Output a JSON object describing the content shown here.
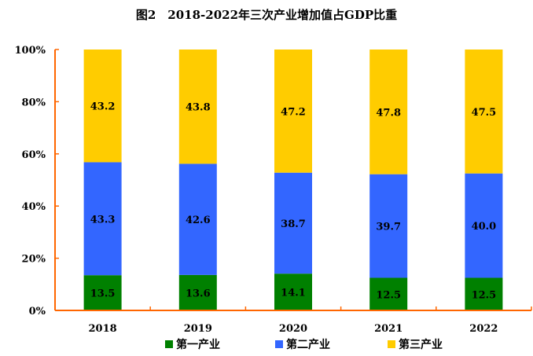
{
  "chart_data": {
    "type": "bar",
    "stacked": true,
    "title": "图2　2018-2022年三次产业增加值占GDP比重",
    "categories": [
      "2018",
      "2019",
      "2020",
      "2021",
      "2022"
    ],
    "series": [
      {
        "name": "第一产业",
        "color": "#008000",
        "values": [
          13.5,
          13.6,
          14.1,
          12.5,
          12.5
        ]
      },
      {
        "name": "第二产业",
        "color": "#3366FF",
        "values": [
          43.3,
          42.6,
          38.7,
          39.7,
          40.0
        ]
      },
      {
        "name": "第三产业",
        "color": "#FFCC00",
        "values": [
          43.2,
          43.8,
          47.2,
          47.8,
          47.5
        ]
      }
    ],
    "ylim": [
      0,
      100
    ],
    "yticks": [
      "0%",
      "20%",
      "40%",
      "60%",
      "80%",
      "100%"
    ],
    "axis_color": "#FF6600",
    "grid": false,
    "legend": "bottom"
  }
}
